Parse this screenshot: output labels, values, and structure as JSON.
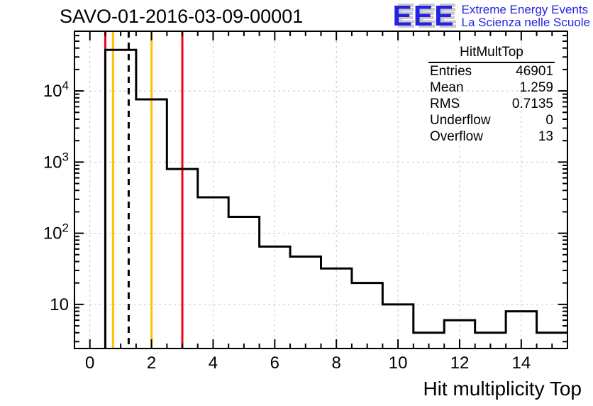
{
  "logo": {
    "text": "EEE",
    "tagline_en": "Extreme Energy Events",
    "tagline_it": "La Scienza nelle Scuole",
    "color": "#2323e1",
    "shadow_color": "#c9c9c9"
  },
  "stats": {
    "title": "HitMultTop",
    "rows": [
      {
        "label": "Entries",
        "value": "46901"
      },
      {
        "label": "Mean",
        "value": "1.259"
      },
      {
        "label": "RMS",
        "value": "0.7135"
      },
      {
        "label": "Underflow",
        "value": "0"
      },
      {
        "label": "Overflow",
        "value": "13"
      }
    ]
  },
  "chart_data": {
    "type": "bar",
    "subtype": "step-histogram-outline",
    "title": "SAVO-01-2016-03-09-00001",
    "xlabel": "Hit multiplicity Top",
    "ylabel": "",
    "y_scale": "log",
    "xlim": [
      -0.5,
      15.5
    ],
    "ylim": [
      2.4,
      69000
    ],
    "bin_width": 1,
    "bin_centers": [
      0,
      1,
      2,
      3,
      4,
      5,
      6,
      7,
      8,
      9,
      10,
      11,
      12,
      13,
      14,
      15
    ],
    "values": [
      0,
      37800,
      7600,
      800,
      320,
      170,
      65,
      47,
      32,
      20,
      10,
      4,
      6,
      4,
      8,
      4
    ],
    "x_major_ticks": [
      0,
      2,
      4,
      6,
      8,
      10,
      12,
      14
    ],
    "x_minor_step": 0.5,
    "y_major_ticks": [
      10,
      100,
      1000,
      10000
    ],
    "line_color": "#000000",
    "grid": {
      "show": true,
      "color": "#c6c6c6",
      "dash": "3 4"
    },
    "legend_position": "none",
    "marker_lines": [
      {
        "x": 0.5,
        "color": "#f10018",
        "style": "solid",
        "name": "red-threshold-low"
      },
      {
        "x": 0.75,
        "color": "#ffc100",
        "style": "solid",
        "name": "orange-threshold-low"
      },
      {
        "x": 1.259,
        "color": "#000000",
        "style": "dashed",
        "name": "mean-marker"
      },
      {
        "x": 2,
        "color": "#ffc100",
        "style": "solid",
        "name": "orange-threshold-high"
      },
      {
        "x": 3,
        "color": "#f10018",
        "style": "solid",
        "name": "red-threshold-high"
      }
    ]
  }
}
